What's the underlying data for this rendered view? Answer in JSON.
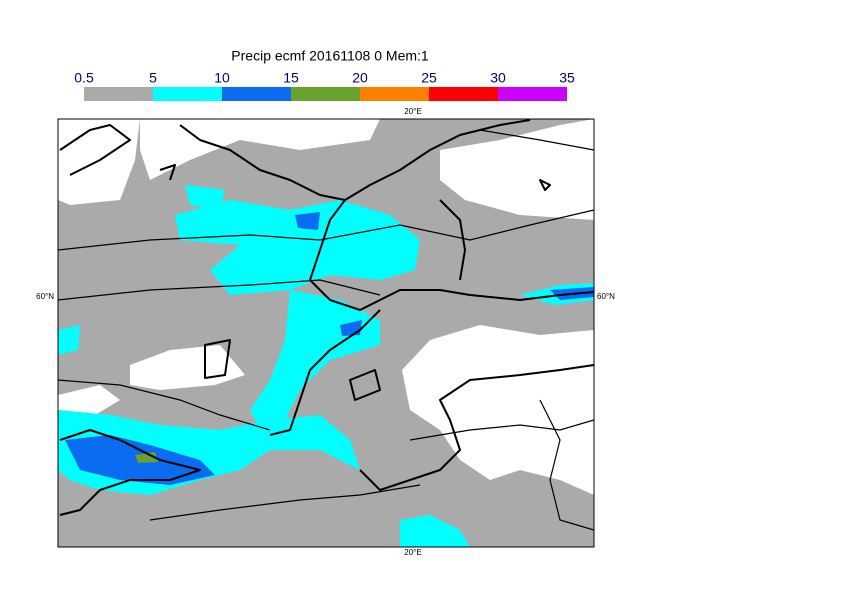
{
  "title": "Precip ecmf 20161108 0 Mem:1",
  "colorbar": {
    "ticks": [
      0.5,
      5,
      10,
      15,
      20,
      25,
      30,
      35
    ],
    "colors": [
      "#aaaaaa",
      "#00ffff",
      "#0a6cf0",
      "#6aa02c",
      "#ff8000",
      "#ff0000",
      "#cc00ff"
    ]
  },
  "map": {
    "lon_label_top": "20°E",
    "lon_label_bottom": "20°E",
    "lat_label_left": "60°N",
    "lat_label_right": "60°N"
  }
}
